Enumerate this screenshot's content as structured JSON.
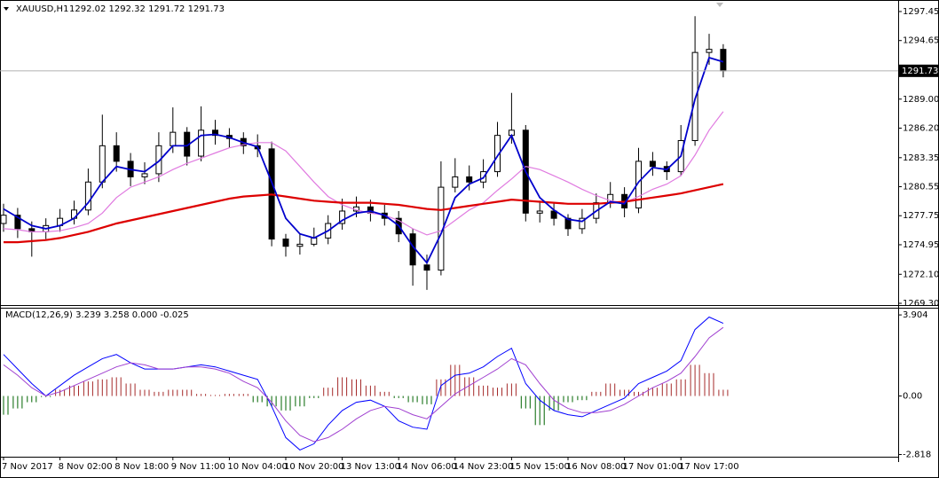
{
  "chart_data": [
    {
      "type": "candlestick",
      "title": "XAUUSD,H1",
      "ohlc_label": "1292.02 1292.32 1291.72 1291.73",
      "categories": [
        "7 Nov 2017",
        null,
        null,
        null,
        "8 Nov 02:00",
        null,
        null,
        null,
        "8 Nov 18:00",
        null,
        null,
        null,
        "9 Nov 11:00",
        null,
        null,
        null,
        "10 Nov 04:00",
        null,
        null,
        null,
        "10 Nov 20:00",
        null,
        null,
        null,
        "13 Nov 13:00",
        null,
        null,
        null,
        "14 Nov 06:00",
        null,
        null,
        null,
        "14 Nov 23:00",
        null,
        null,
        null,
        "15 Nov 15:00",
        null,
        null,
        null,
        "16 Nov 08:00",
        null,
        null,
        null,
        "17 Nov 01:00",
        null,
        null,
        null,
        "17 Nov 17:00",
        null,
        null,
        null
      ],
      "open": [
        1277.0,
        1277.8,
        1276.5,
        1276.2,
        1276.8,
        1277.5,
        1278.3,
        1281.0,
        1284.5,
        1283.0,
        1281.5,
        1281.8,
        1284.5,
        1285.8,
        1283.5,
        1286.0,
        1285.5,
        1285.2,
        1284.5,
        1284.2,
        1275.5,
        1274.8,
        1275.0,
        1275.6,
        1277.0,
        1278.2,
        1278.6,
        1278.0,
        1277.5,
        1276.0,
        1273.0,
        1272.5,
        1280.5,
        1281.5,
        1281.0,
        1282.0,
        1285.5,
        1286.0,
        1278.0,
        1278.2,
        1277.5,
        1276.5,
        1277.5,
        1279.0,
        1279.8,
        1278.5,
        1283.0,
        1282.5,
        1282.0,
        1285.0,
        1293.5,
        1293.8
      ],
      "high": [
        1278.9,
        1278.5,
        1277.2,
        1277.5,
        1278.4,
        1279.2,
        1282.3,
        1287.5,
        1285.8,
        1283.8,
        1282.9,
        1285.8,
        1288.2,
        1286.3,
        1288.3,
        1287.0,
        1286.2,
        1285.8,
        1285.6,
        1284.9,
        1276.0,
        1276.0,
        1276.6,
        1277.8,
        1279.4,
        1279.6,
        1279.3,
        1278.8,
        1278.2,
        1276.5,
        1274.0,
        1283.0,
        1283.3,
        1282.6,
        1283.2,
        1286.8,
        1289.6,
        1286.5,
        1279.2,
        1279.0,
        1277.9,
        1278.4,
        1279.9,
        1281.0,
        1280.5,
        1284.3,
        1283.9,
        1283.0,
        1286.5,
        1297.0,
        1295.3,
        1294.3
      ],
      "low": [
        1276.2,
        1275.6,
        1273.8,
        1275.5,
        1276.2,
        1276.9,
        1277.8,
        1280.4,
        1282.0,
        1280.6,
        1280.8,
        1281.0,
        1283.8,
        1282.6,
        1283.0,
        1284.6,
        1284.3,
        1283.7,
        1283.4,
        1274.8,
        1273.8,
        1274.0,
        1274.8,
        1275.0,
        1276.4,
        1277.6,
        1277.2,
        1276.8,
        1275.2,
        1271.0,
        1270.6,
        1272.0,
        1280.0,
        1280.2,
        1280.4,
        1281.5,
        1284.7,
        1277.2,
        1277.1,
        1276.8,
        1275.8,
        1276.0,
        1277.0,
        1278.5,
        1277.6,
        1278.0,
        1281.6,
        1281.2,
        1281.6,
        1284.5,
        1292.3,
        1291.1
      ],
      "close": [
        1277.8,
        1276.5,
        1276.2,
        1276.8,
        1277.5,
        1278.3,
        1281.0,
        1284.5,
        1283.0,
        1281.5,
        1281.8,
        1284.5,
        1285.8,
        1283.5,
        1286.0,
        1285.5,
        1285.2,
        1284.5,
        1284.2,
        1275.5,
        1274.8,
        1275.0,
        1275.6,
        1277.0,
        1278.2,
        1278.6,
        1278.0,
        1277.5,
        1276.0,
        1273.0,
        1272.5,
        1280.5,
        1281.5,
        1281.0,
        1282.0,
        1285.5,
        1286.0,
        1278.0,
        1278.2,
        1277.5,
        1276.5,
        1277.5,
        1279.0,
        1279.8,
        1278.5,
        1283.0,
        1282.5,
        1282.0,
        1285.0,
        1293.5,
        1293.8,
        1291.73
      ],
      "up_color": "#ffffff",
      "down_color": "#000000",
      "candle_outline": "#000000",
      "series": [
        {
          "color": "#e07be0",
          "width": 1.2,
          "values": [
            1276.5,
            1276.4,
            1276.2,
            1276.2,
            1276.3,
            1276.6,
            1277.0,
            1278.0,
            1279.5,
            1280.5,
            1281.0,
            1281.5,
            1282.2,
            1282.8,
            1283.3,
            1283.8,
            1284.3,
            1284.6,
            1284.8,
            1284.8,
            1284.0,
            1282.5,
            1281.0,
            1279.6,
            1278.8,
            1278.3,
            1278.0,
            1277.8,
            1277.3,
            1276.5,
            1275.9,
            1276.3,
            1277.3,
            1278.3,
            1279.0,
            1280.2,
            1281.3,
            1282.5,
            1282.2,
            1281.6,
            1281.0,
            1280.3,
            1279.7,
            1279.2,
            1279.0,
            1279.6,
            1280.3,
            1280.8,
            1281.6,
            1283.6,
            1286.0,
            1287.8
          ]
        },
        {
          "color": "#dd0000",
          "width": 2.2,
          "values": [
            1275.2,
            1275.2,
            1275.3,
            1275.4,
            1275.6,
            1275.9,
            1276.2,
            1276.6,
            1277.0,
            1277.3,
            1277.6,
            1277.9,
            1278.2,
            1278.5,
            1278.8,
            1279.1,
            1279.4,
            1279.6,
            1279.7,
            1279.8,
            1279.6,
            1279.4,
            1279.2,
            1279.1,
            1279.0,
            1279.0,
            1279.0,
            1278.9,
            1278.8,
            1278.6,
            1278.4,
            1278.3,
            1278.5,
            1278.7,
            1278.9,
            1279.1,
            1279.3,
            1279.2,
            1279.1,
            1279.0,
            1278.9,
            1278.9,
            1278.9,
            1279.0,
            1279.1,
            1279.3,
            1279.5,
            1279.7,
            1279.9,
            1280.2,
            1280.5,
            1280.8
          ]
        },
        {
          "color": "#0000cc",
          "width": 1.8,
          "values": [
            1278.4,
            1277.6,
            1276.8,
            1276.5,
            1276.8,
            1277.5,
            1279.0,
            1281.0,
            1282.5,
            1282.2,
            1282.0,
            1283.0,
            1284.5,
            1284.5,
            1285.5,
            1285.6,
            1285.3,
            1284.8,
            1284.4,
            1281.0,
            1277.5,
            1276.0,
            1275.6,
            1276.3,
            1277.3,
            1278.0,
            1278.2,
            1277.8,
            1276.8,
            1274.8,
            1273.2,
            1276.0,
            1279.5,
            1280.8,
            1281.4,
            1283.5,
            1285.5,
            1282.0,
            1279.5,
            1278.3,
            1277.4,
            1277.2,
            1278.2,
            1279.1,
            1278.9,
            1281.0,
            1282.4,
            1282.2,
            1283.5,
            1289.0,
            1293.0,
            1292.6
          ]
        }
      ],
      "last_price": 1291.73,
      "ylim": [
        1269.13,
        1298.39
      ],
      "yticks": [
        1297.45,
        1294.65,
        {
          "value": 1289,
          "label": "1289.00"
        },
        {
          "value": 1286.2,
          "label": "1286.20"
        },
        1283.35,
        1280.55,
        1277.75,
        1274.95,
        {
          "value": 1272.1,
          "label": "1272.10"
        },
        {
          "value": 1269.3,
          "label": "1269.30"
        }
      ],
      "grid": false
    },
    {
      "type": "macd",
      "title": "MACD(12,26,9) 3.239 3.258 0.000 -0.025",
      "histogram": {
        "up_color": "#a52a2a",
        "down_color": "#006400",
        "values": [
          -0.9,
          -0.6,
          -0.3,
          -0.05,
          0.3,
          0.5,
          0.7,
          0.8,
          0.9,
          0.6,
          0.3,
          0.2,
          0.3,
          0.3,
          0.1,
          0.05,
          0.1,
          0.1,
          -0.3,
          -0.5,
          -0.7,
          -0.5,
          -0.1,
          0.4,
          0.9,
          0.8,
          0.5,
          0.2,
          -0.1,
          -0.3,
          -0.4,
          0.8,
          1.5,
          0.9,
          0.5,
          0.4,
          0.6,
          -0.6,
          -1.4,
          -0.7,
          -0.3,
          -0.2,
          0.2,
          0.6,
          0.3,
          0.2,
          0.4,
          0.6,
          0.8,
          1.5,
          1.1,
          0.3
        ]
      },
      "series": [
        {
          "color": "#0000ff",
          "width": 1,
          "values": [
            2.0,
            1.3,
            0.6,
            0.0,
            0.5,
            1.0,
            1.4,
            1.8,
            2.0,
            1.6,
            1.3,
            1.3,
            1.3,
            1.4,
            1.5,
            1.4,
            1.2,
            1.0,
            0.8,
            -0.5,
            -2.0,
            -2.6,
            -2.3,
            -1.4,
            -0.7,
            -0.3,
            -0.2,
            -0.5,
            -1.2,
            -1.5,
            -1.6,
            0.5,
            1.0,
            1.1,
            1.4,
            1.9,
            2.3,
            0.6,
            -0.2,
            -0.7,
            -0.9,
            -1.0,
            -0.7,
            -0.4,
            -0.1,
            0.6,
            0.9,
            1.2,
            1.7,
            3.2,
            3.8,
            3.5
          ]
        },
        {
          "color": "#a040d0",
          "width": 1,
          "values": [
            1.5,
            1.0,
            0.4,
            0.0,
            0.2,
            0.5,
            0.8,
            1.1,
            1.4,
            1.6,
            1.5,
            1.3,
            1.3,
            1.4,
            1.4,
            1.3,
            1.1,
            0.7,
            0.4,
            -0.3,
            -1.2,
            -1.9,
            -2.2,
            -2.0,
            -1.6,
            -1.1,
            -0.7,
            -0.5,
            -0.6,
            -0.9,
            -1.1,
            -0.5,
            0.1,
            0.5,
            0.9,
            1.3,
            1.8,
            1.5,
            0.6,
            -0.2,
            -0.6,
            -0.8,
            -0.8,
            -0.7,
            -0.4,
            0.0,
            0.4,
            0.7,
            1.1,
            1.9,
            2.8,
            3.3
          ]
        }
      ],
      "ylim": [
        -3.18,
        4.25
      ],
      "yticks": [
        3.904,
        {
          "value": 0,
          "label": "0.00"
        },
        -2.818
      ],
      "grid": false
    }
  ]
}
